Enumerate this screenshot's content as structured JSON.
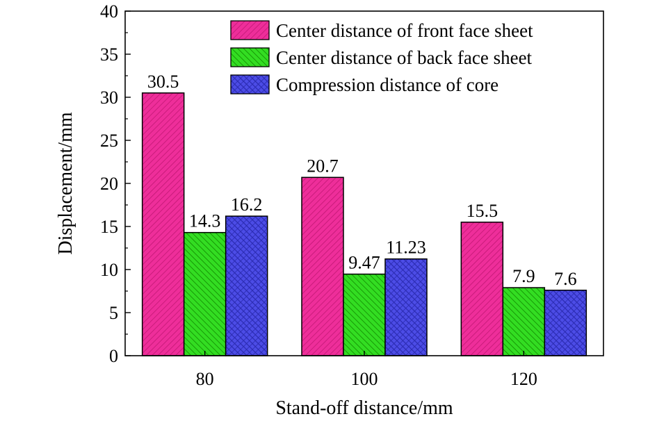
{
  "chart_data": {
    "type": "bar",
    "categories": [
      "80",
      "100",
      "120"
    ],
    "series": [
      {
        "name": "Center distance of front face sheet",
        "values": [
          30.5,
          20.7,
          15.5
        ],
        "labels": [
          "30.5",
          "20.7",
          "15.5"
        ],
        "color": "#ee2e9a",
        "hatch": "#c21774"
      },
      {
        "name": "Center distance of back face sheet",
        "values": [
          14.3,
          9.47,
          7.9
        ],
        "labels": [
          "14.3",
          "9.47",
          "7.9"
        ],
        "color": "#33dd22",
        "hatch": "#118800"
      },
      {
        "name": "Compression distance of core",
        "values": [
          16.2,
          11.23,
          7.6
        ],
        "labels": [
          "16.2",
          "11.23",
          "7.6"
        ],
        "color": "#4c4ce6",
        "hatch": "#2a2ab0"
      }
    ],
    "xlabel": "Stand-off distance/mm",
    "ylabel": "Displacement/mm",
    "ylim": [
      0,
      40
    ],
    "yticks": [
      "0",
      "5",
      "10",
      "15",
      "20",
      "25",
      "30",
      "35",
      "40"
    ],
    "legend_position": "top-right",
    "grid": false
  }
}
